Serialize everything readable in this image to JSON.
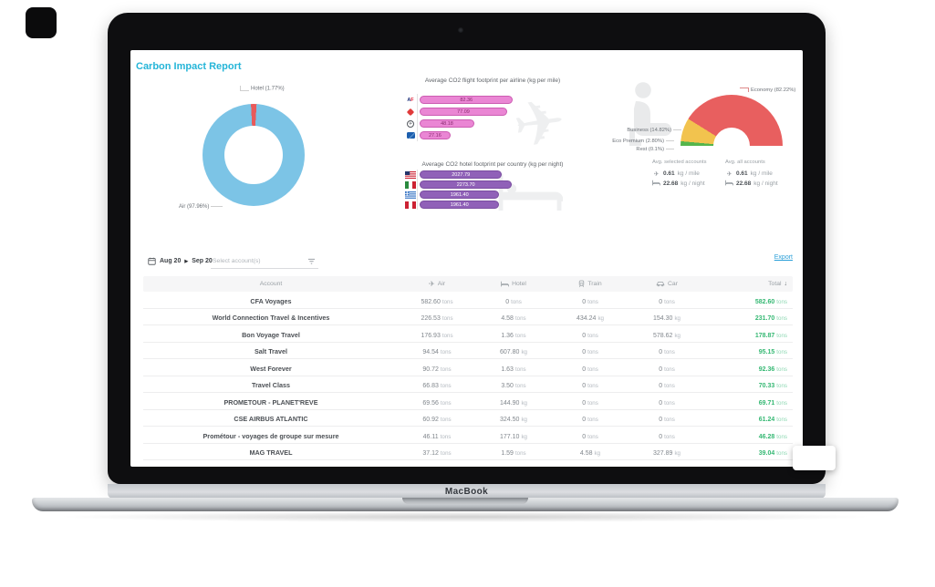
{
  "window": {
    "brand_label": "MacBook"
  },
  "report": {
    "title": "Carbon Impact Report"
  },
  "colors": {
    "accent_cyan": "#25b5d8",
    "donut_air_blue": "#7cc4e6",
    "donut_hotel_red": "#e85a5a",
    "flight_bar_pink": "#ea86d4",
    "hotel_bar_purple": "#9061b8",
    "gauge_economy_red": "#e85f5f",
    "gauge_business_yellow": "#f2c34e",
    "gauge_eco_premium_green": "#55b54c",
    "gauge_rest_blue": "#4a7fd4",
    "total_green": "#35b873",
    "export_blue": "#2a9fd8"
  },
  "chart_data": [
    {
      "id": "transport-mode-split",
      "type": "pie",
      "style": "donut",
      "legend_position": "callout-labels",
      "segments": [
        {
          "label": "Hotel",
          "display": "Hotel (1.77%)",
          "pct": 1.77,
          "color": "#e85a5a"
        },
        {
          "label": "Air",
          "display": "Air (97.96%)",
          "pct": 97.96,
          "color": "#7cc4e6"
        }
      ]
    },
    {
      "id": "flight-footprint-per-airline",
      "type": "bar",
      "orientation": "horizontal",
      "title": "Average CO2 flight footprint per airline (kg per mile)",
      "categories": [
        "airline-af-icon",
        "airline-red-diamond-icon",
        "airline-bird-circle-icon",
        "airline-blue-wave-icon"
      ],
      "values": [
        82.36,
        77.09,
        48.18,
        27.16
      ],
      "xlim": [
        0,
        86
      ],
      "value_labels": [
        "82.36",
        "77.09",
        "48.18",
        "27.16"
      ]
    },
    {
      "id": "hotel-footprint-per-country",
      "type": "bar",
      "orientation": "horizontal",
      "title": "Average CO2 hotel footprint per country (kg per night)",
      "categories": [
        "flag-us-icon",
        "flag-italy-icon",
        "flag-greece-icon",
        "flag-peru-icon"
      ],
      "country_names": [
        "United States",
        "Italy",
        "Greece",
        "Peru"
      ],
      "values": [
        2027.79,
        2273.7,
        1961.4,
        1961.4
      ],
      "xlim": [
        0,
        2400
      ],
      "value_labels": [
        "2027.79",
        "2273.70",
        "1961.40",
        "1961.40"
      ]
    },
    {
      "id": "cabin-class-split",
      "type": "pie",
      "style": "half-donut-gauge",
      "segments": [
        {
          "label": "Rest",
          "display": "Rest (0.1%)",
          "pct": 0.1,
          "color": "#4a7fd4"
        },
        {
          "label": "Eco Premium",
          "display": "Eco Premium (2.80%)",
          "pct": 2.8,
          "color": "#55b54c"
        },
        {
          "label": "Business",
          "display": "Business (14.82%)",
          "pct": 14.82,
          "color": "#f2c34e"
        },
        {
          "label": "Economy",
          "display": "Economy (82.22%)",
          "pct": 82.22,
          "color": "#e85f5f"
        }
      ]
    }
  ],
  "averages": {
    "selected": {
      "title": "Avg. selected accounts",
      "per_mile_value": "0.61",
      "per_mile_unit": "kg / mile",
      "per_night_value": "22.68",
      "per_night_unit": "kg / night"
    },
    "all": {
      "title": "Avg. all accounts",
      "per_mile_value": "0.61",
      "per_mile_unit": "kg / mile",
      "per_night_value": "22.68",
      "per_night_unit": "kg / night"
    }
  },
  "filters": {
    "date_from": "Aug 20",
    "date_to": "Sep 20",
    "account_placeholder": "Select account(s)",
    "export_label": "Export"
  },
  "table": {
    "headers": [
      {
        "label": "Account",
        "icon": null
      },
      {
        "label": "Air",
        "icon": "plane-icon"
      },
      {
        "label": "Hotel",
        "icon": "bed-icon"
      },
      {
        "label": "Train",
        "icon": "train-icon"
      },
      {
        "label": "Car",
        "icon": "car-icon"
      },
      {
        "label": "Total",
        "icon": "sort-desc-icon"
      }
    ],
    "rows": [
      {
        "account": "CFA Voyages",
        "air": "582.60 tons",
        "hotel": "0 tons",
        "train": "0 tons",
        "car": "0 tons",
        "total": "582.60 tons"
      },
      {
        "account": "World Connection Travel & Incentives",
        "air": "226.53 tons",
        "hotel": "4.58 tons",
        "train": "434.24 kg",
        "car": "154.30 kg",
        "total": "231.70 tons"
      },
      {
        "account": "Bon Voyage Travel",
        "air": "176.93 tons",
        "hotel": "1.36 tons",
        "train": "0 tons",
        "car": "578.62 kg",
        "total": "178.87 tons"
      },
      {
        "account": "Salt Travel",
        "air": "94.54 tons",
        "hotel": "607.80 kg",
        "train": "0 tons",
        "car": "0 tons",
        "total": "95.15 tons"
      },
      {
        "account": "West Forever",
        "air": "90.72 tons",
        "hotel": "1.63 tons",
        "train": "0 tons",
        "car": "0 tons",
        "total": "92.36 tons"
      },
      {
        "account": "Travel Class",
        "air": "66.83 tons",
        "hotel": "3.50 tons",
        "train": "0 tons",
        "car": "0 tons",
        "total": "70.33 tons"
      },
      {
        "account": "PROMETOUR - PLANET'REVE",
        "air": "69.56 tons",
        "hotel": "144.90 kg",
        "train": "0 tons",
        "car": "0 tons",
        "total": "69.71 tons"
      },
      {
        "account": "CSE AIRBUS ATLANTIC",
        "air": "60.92 tons",
        "hotel": "324.50 kg",
        "train": "0 tons",
        "car": "0 tons",
        "total": "61.24 tons"
      },
      {
        "account": "Prométour - voyages de groupe sur mesure",
        "air": "46.11 tons",
        "hotel": "177.10 kg",
        "train": "0 tons",
        "car": "0 tons",
        "total": "46.28 tons"
      },
      {
        "account": "MAG TRAVEL",
        "air": "37.12 tons",
        "hotel": "1.59 tons",
        "train": "4.58 kg",
        "car": "327.89 kg",
        "total": "39.04 tons"
      }
    ]
  }
}
